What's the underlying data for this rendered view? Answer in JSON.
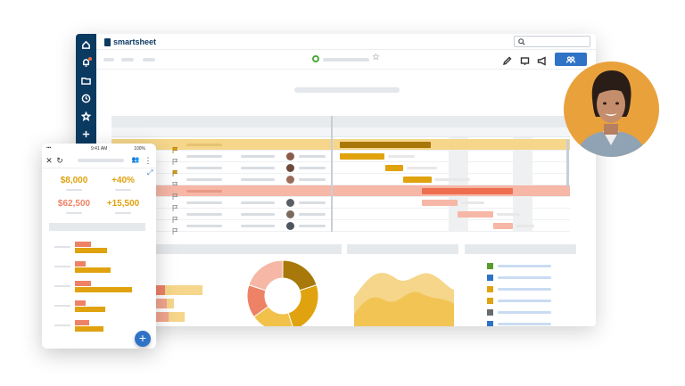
{
  "app": {
    "logo_text": "smartsheet"
  },
  "rail": {
    "icons": [
      "home-icon",
      "bell-icon",
      "folder-icon",
      "clock-icon",
      "star-icon",
      "plus-icon"
    ]
  },
  "toolbar": {
    "icons": [
      "pencil-icon",
      "present-icon",
      "megaphone-icon"
    ],
    "share_icon": "people-icon"
  },
  "search": {
    "icon": "search-icon"
  },
  "phone": {
    "time": "9:41 AM",
    "battery": "100%",
    "stats": [
      {
        "value": "$8,000"
      },
      {
        "value": "+40%"
      },
      {
        "value": "$62,500"
      },
      {
        "value": "+15,500"
      }
    ],
    "fab": "+"
  },
  "colors": {
    "navy": "#0b3a61",
    "accent_blue": "#2f73c6",
    "gold": "#e0a20e",
    "salmon": "#ee8266",
    "light_salmon": "#f6b7a6",
    "light_gold": "#f5d68a",
    "portrait_bg": "#e9a13b"
  },
  "legend_colors": [
    "#5b9a2f",
    "#2f73c6",
    "#e0a20e",
    "#e0a20e",
    "#666b70",
    "#2f73c6"
  ],
  "chart_data": [
    {
      "type": "pie",
      "values": [
        20,
        25,
        20,
        15,
        20
      ],
      "colors": [
        "#a8780a",
        "#e0a20e",
        "#f1c14a",
        "#ee8266",
        "#f6b7a6"
      ]
    },
    {
      "type": "area"
    }
  ]
}
